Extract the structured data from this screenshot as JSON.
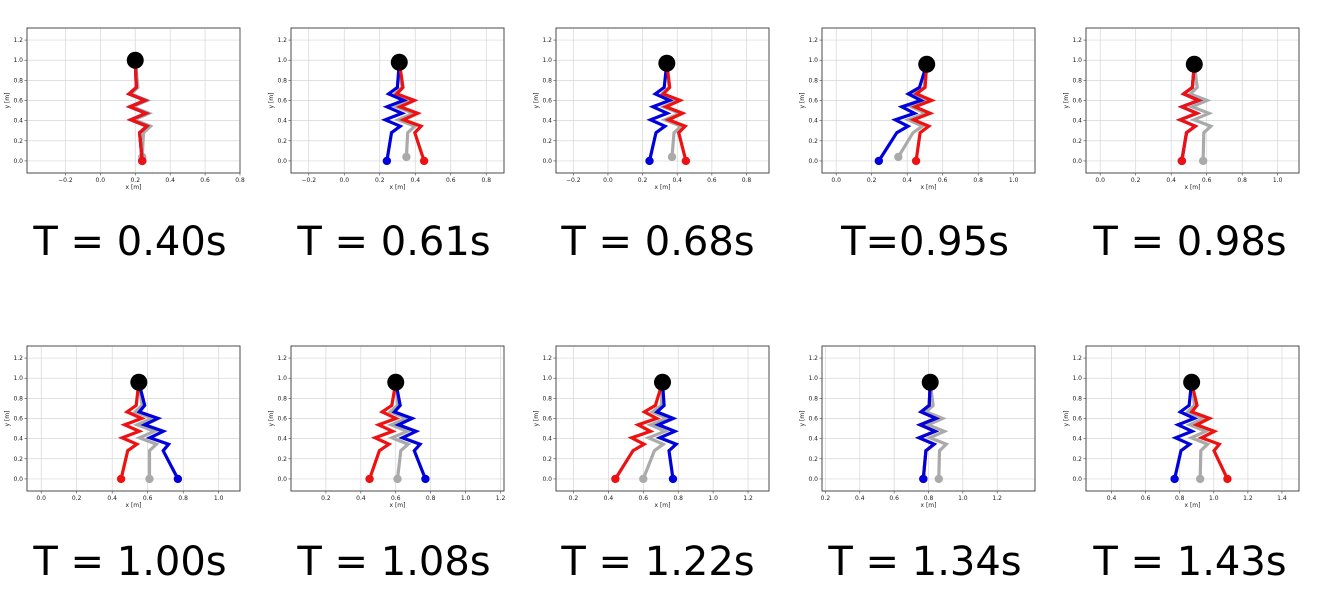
{
  "chart_data": [
    {
      "type": "line",
      "time_label": "T = 0.40s",
      "xlabel": "x [m]",
      "ylabel": "y [m]",
      "xlim": [
        -0.42,
        0.8
      ],
      "ylim": [
        -0.12,
        1.32
      ],
      "xticks": [
        -0.2,
        0.0,
        0.2,
        0.4,
        0.6,
        0.8
      ],
      "yticks": [
        0.0,
        0.2,
        0.4,
        0.6,
        0.8,
        1.0,
        1.2
      ],
      "hip": [
        0.2,
        1.0
      ],
      "legs": [
        {
          "color": "#0000dd",
          "foot": [
            0.24,
            0.0
          ]
        },
        {
          "color": "#ee1111",
          "foot": [
            0.24,
            0.0
          ]
        },
        {
          "color": "#aaaaaa",
          "foot": [
            0.24,
            0.04
          ]
        }
      ],
      "grid": true
    },
    {
      "type": "line",
      "time_label": "T = 0.61s",
      "xlabel": "x [m]",
      "ylabel": "y [m]",
      "xlim": [
        -0.3,
        0.9
      ],
      "ylim": [
        -0.12,
        1.32
      ],
      "xticks": [
        -0.2,
        0.0,
        0.2,
        0.4,
        0.6,
        0.8
      ],
      "yticks": [
        0.0,
        0.2,
        0.4,
        0.6,
        0.8,
        1.0,
        1.2
      ],
      "hip": [
        0.31,
        0.98
      ],
      "legs": [
        {
          "color": "#0000dd",
          "foot": [
            0.24,
            0.0
          ]
        },
        {
          "color": "#ee1111",
          "foot": [
            0.45,
            0.0
          ]
        },
        {
          "color": "#aaaaaa",
          "foot": [
            0.35,
            0.04
          ]
        }
      ],
      "grid": true
    },
    {
      "type": "line",
      "time_label": "T = 0.68s",
      "xlabel": "x [m]",
      "ylabel": "y [m]",
      "xlim": [
        -0.3,
        0.93
      ],
      "ylim": [
        -0.12,
        1.32
      ],
      "xticks": [
        -0.2,
        0.0,
        0.2,
        0.4,
        0.6,
        0.8
      ],
      "yticks": [
        0.0,
        0.2,
        0.4,
        0.6,
        0.8,
        1.0,
        1.2
      ],
      "hip": [
        0.34,
        0.97
      ],
      "legs": [
        {
          "color": "#0000dd",
          "foot": [
            0.24,
            0.0
          ]
        },
        {
          "color": "#ee1111",
          "foot": [
            0.45,
            0.0
          ]
        },
        {
          "color": "#aaaaaa",
          "foot": [
            0.37,
            0.04
          ]
        }
      ],
      "grid": true
    },
    {
      "type": "line",
      "time_label": "T=0.95s",
      "xlabel": "x [m]",
      "ylabel": "y [m]",
      "xlim": [
        -0.08,
        1.12
      ],
      "ylim": [
        -0.12,
        1.32
      ],
      "xticks": [
        0.0,
        0.2,
        0.4,
        0.6,
        0.8,
        1.0
      ],
      "yticks": [
        0.0,
        0.2,
        0.4,
        0.6,
        0.8,
        1.0,
        1.2
      ],
      "hip": [
        0.51,
        0.96
      ],
      "legs": [
        {
          "color": "#0000dd",
          "foot": [
            0.24,
            0.0
          ]
        },
        {
          "color": "#ee1111",
          "foot": [
            0.45,
            0.0
          ]
        },
        {
          "color": "#aaaaaa",
          "foot": [
            0.35,
            0.04
          ]
        }
      ],
      "grid": true
    },
    {
      "type": "line",
      "time_label": "T = 0.98s",
      "xlabel": "x [m]",
      "ylabel": "y [m]",
      "xlim": [
        -0.08,
        1.12
      ],
      "ylim": [
        -0.12,
        1.32
      ],
      "xticks": [
        0.0,
        0.2,
        0.4,
        0.6,
        0.8,
        1.0
      ],
      "yticks": [
        0.0,
        0.2,
        0.4,
        0.6,
        0.8,
        1.0,
        1.2
      ],
      "hip": [
        0.53,
        0.96
      ],
      "legs": [
        {
          "color": "#0000dd",
          "foot": [
            0.46,
            0.0
          ]
        },
        {
          "color": "#ee1111",
          "foot": [
            0.46,
            0.0
          ]
        },
        {
          "color": "#aaaaaa",
          "foot": [
            0.58,
            0.0
          ]
        }
      ],
      "grid": true
    },
    {
      "type": "line",
      "time_label": "T = 1.00s",
      "xlabel": "x [m]",
      "ylabel": "y [m]",
      "xlim": [
        -0.08,
        1.12
      ],
      "ylim": [
        -0.12,
        1.32
      ],
      "xticks": [
        0.0,
        0.2,
        0.4,
        0.6,
        0.8,
        1.0
      ],
      "yticks": [
        0.0,
        0.2,
        0.4,
        0.6,
        0.8,
        1.0,
        1.2
      ],
      "hip": [
        0.55,
        0.96
      ],
      "legs": [
        {
          "color": "#ee1111",
          "foot": [
            0.45,
            0.0
          ]
        },
        {
          "color": "#0000dd",
          "foot": [
            0.77,
            0.0
          ]
        },
        {
          "color": "#aaaaaa",
          "foot": [
            0.61,
            0.0
          ]
        }
      ],
      "grid": true
    },
    {
      "type": "line",
      "time_label": "T = 1.08s",
      "xlabel": "x [m]",
      "ylabel": "y [m]",
      "xlim": [
        0.0,
        1.22
      ],
      "ylim": [
        -0.12,
        1.32
      ],
      "xticks": [
        0.2,
        0.4,
        0.6,
        0.8,
        1.0,
        1.2
      ],
      "yticks": [
        0.0,
        0.2,
        0.4,
        0.6,
        0.8,
        1.0,
        1.2
      ],
      "hip": [
        0.6,
        0.96
      ],
      "legs": [
        {
          "color": "#ee1111",
          "foot": [
            0.45,
            0.0
          ]
        },
        {
          "color": "#0000dd",
          "foot": [
            0.77,
            0.0
          ]
        },
        {
          "color": "#aaaaaa",
          "foot": [
            0.61,
            0.0
          ]
        }
      ],
      "grid": true
    },
    {
      "type": "line",
      "time_label": "T = 1.22s",
      "xlabel": "x [m]",
      "ylabel": "y [m]",
      "xlim": [
        0.1,
        1.32
      ],
      "ylim": [
        -0.12,
        1.32
      ],
      "xticks": [
        0.2,
        0.4,
        0.6,
        0.8,
        1.0,
        1.2
      ],
      "yticks": [
        0.0,
        0.2,
        0.4,
        0.6,
        0.8,
        1.0,
        1.2
      ],
      "hip": [
        0.71,
        0.96
      ],
      "legs": [
        {
          "color": "#ee1111",
          "foot": [
            0.44,
            0.0
          ]
        },
        {
          "color": "#0000dd",
          "foot": [
            0.77,
            0.0
          ]
        },
        {
          "color": "#aaaaaa",
          "foot": [
            0.6,
            0.0
          ]
        }
      ],
      "grid": true
    },
    {
      "type": "line",
      "time_label": "T = 1.34s",
      "xlabel": "x [m]",
      "ylabel": "y [m]",
      "xlim": [
        0.18,
        1.42
      ],
      "ylim": [
        -0.12,
        1.32
      ],
      "xticks": [
        0.2,
        0.4,
        0.6,
        0.8,
        1.0,
        1.2
      ],
      "yticks": [
        0.0,
        0.2,
        0.4,
        0.6,
        0.8,
        1.0,
        1.2
      ],
      "hip": [
        0.81,
        0.96
      ],
      "legs": [
        {
          "color": "#ee1111",
          "foot": [
            0.77,
            0.0
          ]
        },
        {
          "color": "#0000dd",
          "foot": [
            0.77,
            0.0
          ]
        },
        {
          "color": "#aaaaaa",
          "foot": [
            0.86,
            0.0
          ]
        }
      ],
      "grid": true
    },
    {
      "type": "line",
      "time_label": "T = 1.43s",
      "xlabel": "x [m]",
      "ylabel": "y [m]",
      "xlim": [
        0.25,
        1.5
      ],
      "ylim": [
        -0.12,
        1.32
      ],
      "xticks": [
        0.4,
        0.6,
        0.8,
        1.0,
        1.2,
        1.4
      ],
      "yticks": [
        0.0,
        0.2,
        0.4,
        0.6,
        0.8,
        1.0,
        1.2
      ],
      "hip": [
        0.87,
        0.96
      ],
      "legs": [
        {
          "color": "#0000dd",
          "foot": [
            0.77,
            0.0
          ]
        },
        {
          "color": "#ee1111",
          "foot": [
            1.08,
            0.0
          ]
        },
        {
          "color": "#aaaaaa",
          "foot": [
            0.92,
            0.0
          ]
        }
      ],
      "grid": true
    }
  ]
}
